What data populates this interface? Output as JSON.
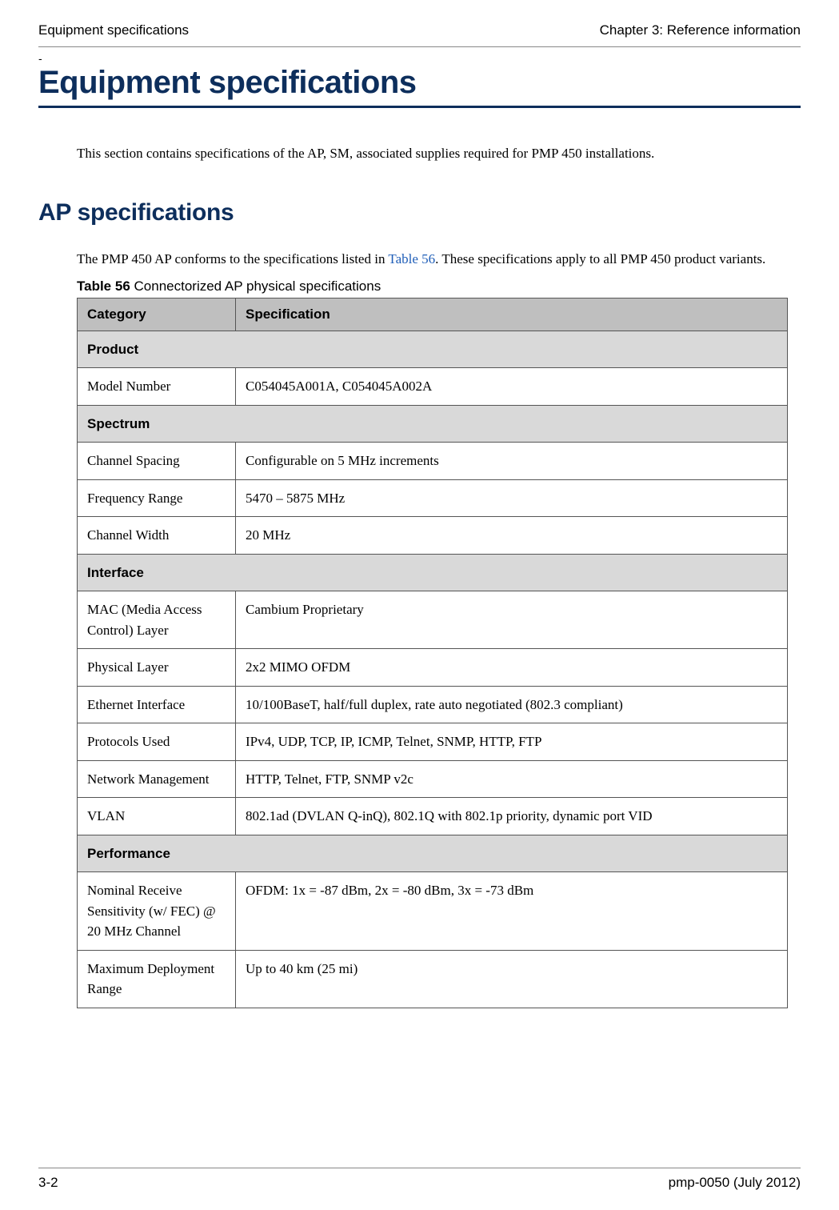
{
  "header": {
    "left": "Equipment specifications",
    "right": "Chapter 3:  Reference information"
  },
  "dash": "-",
  "title": "Equipment specifications",
  "intro": "This section contains specifications of the AP, SM, associated supplies required for PMP 450 installations.",
  "h2": "AP specifications",
  "body_pre": "The PMP 450 AP conforms to the specifications listed in ",
  "body_link": "Table 56",
  "body_post": ".  These specifications apply to all PMP 450 product variants.",
  "caption_bold": "Table 56",
  "caption_rest": "  Connectorized AP physical specifications",
  "table": {
    "header": [
      "Category",
      "Specification"
    ],
    "sections": [
      {
        "name": "Product",
        "rows": [
          [
            "Model Number",
            "C054045A001A, C054045A002A"
          ]
        ]
      },
      {
        "name": "Spectrum",
        "rows": [
          [
            "Channel Spacing",
            "Configurable on 5 MHz increments"
          ],
          [
            "Frequency Range",
            "5470 – 5875 MHz"
          ],
          [
            "Channel Width",
            "20 MHz"
          ]
        ]
      },
      {
        "name": "Interface",
        "rows": [
          [
            "MAC (Media Access Control) Layer",
            "Cambium Proprietary"
          ],
          [
            "Physical Layer",
            "2x2 MIMO OFDM"
          ],
          [
            "Ethernet Interface",
            "10/100BaseT, half/full duplex, rate auto negotiated (802.3 compliant)"
          ],
          [
            "Protocols Used",
            "IPv4, UDP, TCP, IP, ICMP, Telnet, SNMP, HTTP, FTP"
          ],
          [
            "Network Management",
            "HTTP, Telnet, FTP, SNMP v2c"
          ],
          [
            "VLAN",
            "802.1ad (DVLAN Q-inQ), 802.1Q with 802.1p priority, dynamic port VID"
          ]
        ]
      },
      {
        "name": "Performance",
        "rows": [
          [
            "Nominal Receive Sensitivity (w/ FEC) @ 20 MHz Channel",
            "OFDM: 1x = -87 dBm, 2x = -80 dBm, 3x = -73 dBm"
          ],
          [
            "Maximum Deployment Range",
            "Up to 40 km (25 mi)"
          ]
        ]
      }
    ]
  },
  "footer": {
    "left": "3-2",
    "right": "pmp-0050 (July 2012)"
  }
}
